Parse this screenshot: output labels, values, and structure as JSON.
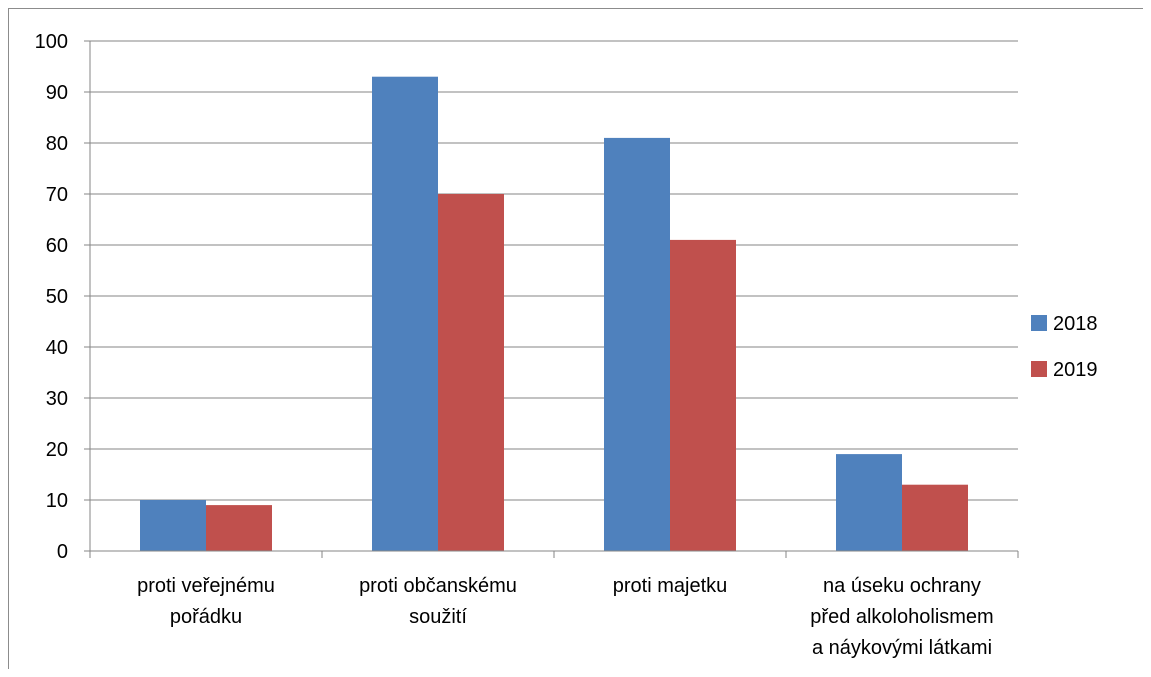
{
  "chart_data": {
    "type": "bar",
    "title": "",
    "xlabel": "",
    "ylabel": "",
    "categories": [
      [
        "proti veřejnému",
        "pořádku"
      ],
      [
        "proti občanskému",
        "soužití"
      ],
      [
        "proti majetku"
      ],
      [
        "na úseku ochrany",
        "před alkoloholismem",
        "a náykovými látkami"
      ]
    ],
    "series": [
      {
        "name": "2018",
        "color": "#4f81bd",
        "values": [
          10,
          93,
          81,
          19
        ]
      },
      {
        "name": "2019",
        "color": "#c0504d",
        "values": [
          9,
          70,
          61,
          13
        ]
      }
    ],
    "ylim": [
      0,
      100
    ],
    "yticks": [
      0,
      10,
      20,
      30,
      40,
      50,
      60,
      70,
      80,
      90,
      100
    ],
    "grid": true,
    "legend_position": "right"
  }
}
